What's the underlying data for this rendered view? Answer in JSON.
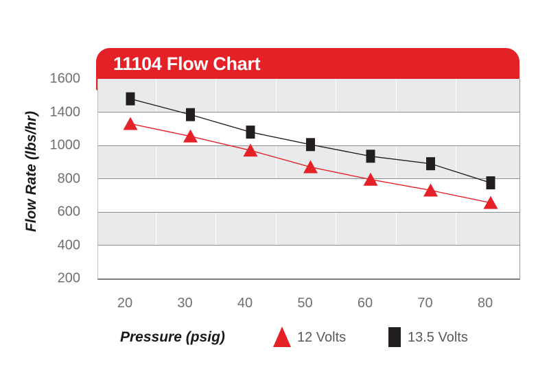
{
  "chart": {
    "title": "11104 Flow Chart",
    "y_title": "Flow Rate (lbs/hr)",
    "x_axis_title": "Pressure (psig)"
  },
  "colors": {
    "banner_red": "#e42127",
    "series_red": "#e42127",
    "series_black": "#231f20",
    "band_gray": "#e9eaec",
    "gridline_gray": "#8c8d8f",
    "tick_text_gray": "#6e6f71",
    "legend_text_gray": "#58595b",
    "title_text_white": "#ffffff"
  },
  "chart_data": {
    "type": "line",
    "title": "11104 Flow Chart",
    "xlabel": "Pressure (psig)",
    "ylabel": "Flow Rate (lbs/hr)",
    "x": [
      20,
      30,
      40,
      50,
      60,
      70,
      80
    ],
    "x_tick_labels": [
      "20",
      "30",
      "40",
      "50",
      "60",
      "70",
      "80"
    ],
    "y_tick_labels": [
      "1600",
      "1400",
      "1000",
      "800",
      "600",
      "400",
      "200"
    ],
    "y_axis_note": "labels as printed on chart; equally spaced bands, 1200 not shown",
    "grid": "alternating gray/white horizontal bands, gray horizontal gridlines, white vertical separators between categories",
    "legend_position": "bottom",
    "series": [
      {
        "name": "12 Volts",
        "marker": "triangle",
        "color": "#e42127",
        "values": [
          1260,
          1110,
          970,
          870,
          795,
          730,
          655
        ]
      },
      {
        "name": "13.5 Volts",
        "marker": "square",
        "color": "#231f20",
        "values": [
          1480,
          1370,
          1160,
          1010,
          935,
          890,
          775
        ]
      }
    ]
  }
}
